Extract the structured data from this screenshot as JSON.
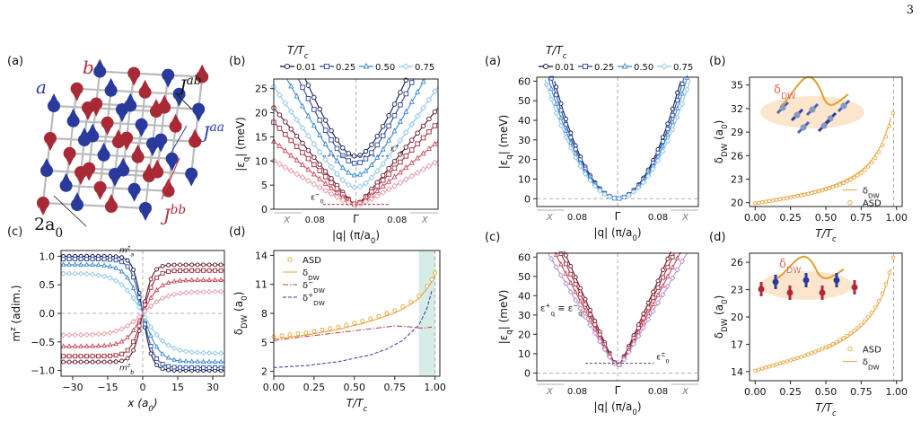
{
  "page": {
    "number": "3"
  },
  "labels": {
    "a": "(a)",
    "b": "(b)",
    "c": "(c)",
    "d": "(d)",
    "legend_title": "T/T",
    "legend_title_sub": "c",
    "q_axis": "|q| (π/a",
    "q_axis_sub": "0",
    "q_axis_close": ")",
    "eps_axis": "|ε",
    "eps_axis_sub": "q",
    "eps_axis_close": "| (meV)",
    "T_axis": "T/T",
    "T_axis_sub": "c",
    "delta_axis": "δ",
    "delta_axis_sub": "DW",
    "delta_axis_close": " (a",
    "delta_axis_close2": "0",
    "delta_axis_close3": ")",
    "x_axis": "x (a",
    "x_axis_sub": "0",
    "x_axis_close": ")",
    "m_axis": "m",
    "m_axis_sup": "z",
    "m_axis_close": " (adim.)",
    "lattice_a": "a",
    "lattice_b": "b",
    "J_ab": "J",
    "J_ab_sup": "ab",
    "J_aa": "J",
    "J_aa_sup": "aa",
    "J_bb": "J",
    "J_bb_sup": "bb",
    "two_a0": "2a",
    "two_a0_sub": "0",
    "m_a": "m",
    "m_a_sup": "z",
    "m_a_sub": "a",
    "m_b": "m",
    "m_b_sup": "z",
    "m_b_sub": "b",
    "eps_plus": "ε",
    "eps_plus_sup": "+",
    "eps_plus_sub": "0",
    "eps_minus": "ε",
    "eps_minus_sup": "−",
    "eps_minus_sub": "0",
    "eps_pm": "ε",
    "eps_pm_sup": "±",
    "eps_pm_sub": "0",
    "eps_equiv": "ε",
    "eps_equiv_sup1": "+",
    "eps_equiv_sub1": "q",
    "eps_equiv_mid": " ≡ ε",
    "eps_equiv_sup2": "−",
    "eps_equiv_sub2": "q",
    "delta_dw_inset": "δ",
    "delta_dw_inset_sub": "DW"
  },
  "legend": {
    "entries": [
      "0.01",
      "0.25",
      "0.50",
      "0.75"
    ]
  },
  "q_ticks": [
    "X",
    "0.08",
    "Γ",
    "0.08",
    "X"
  ],
  "colors": {
    "navy": "#101848",
    "blue": "#2c4a9c",
    "mid": "#3d8ad0",
    "light": "#8fc6ea",
    "dred": "#5c1428",
    "red": "#9c2a3c",
    "mred": "#c9485a",
    "pink": "#e89aa6",
    "orange": "#e8a33a",
    "purple": "#b28fd0"
  },
  "chart_data": [
    {
      "id": "L_b",
      "type": "line",
      "ylim": [
        0,
        27
      ],
      "yticks": [
        0,
        5,
        10,
        15,
        20,
        25
      ],
      "series": [
        {
          "name": "0.01",
          "gap": 11,
          "slope": 40,
          "branch": "upper"
        },
        {
          "name": "0.25",
          "gap": 9.5,
          "slope": 36,
          "branch": "upper"
        },
        {
          "name": "0.50",
          "gap": 7,
          "slope": 31,
          "branch": "upper"
        },
        {
          "name": "0.75",
          "gap": 4.5,
          "slope": 25,
          "branch": "upper"
        },
        {
          "name": "0.01",
          "gap": 1,
          "slope": 21,
          "branch": "lower"
        },
        {
          "name": "0.25",
          "gap": 1,
          "slope": 18,
          "branch": "lower"
        },
        {
          "name": "0.50",
          "gap": 1,
          "slope": 14,
          "branch": "lower"
        },
        {
          "name": "0.75",
          "gap": 1,
          "slope": 10,
          "branch": "lower"
        }
      ]
    },
    {
      "id": "L_c",
      "type": "line",
      "xlim": [
        -35,
        35
      ],
      "ylim": [
        -1.1,
        1.1
      ],
      "xticks": [
        -30,
        -15,
        0,
        15,
        30
      ],
      "yticks": [
        -1.0,
        -0.5,
        0.0,
        0.5,
        1.0
      ],
      "series": [
        {
          "name": "0.01",
          "amp": 1.0,
          "width": 4
        },
        {
          "name": "0.25",
          "amp": 0.95,
          "width": 5
        },
        {
          "name": "0.50",
          "amp": 0.85,
          "width": 7
        },
        {
          "name": "0.75",
          "amp": 0.7,
          "width": 10
        },
        {
          "name": "0.01",
          "amp": 0.85,
          "width": 4
        },
        {
          "name": "0.25",
          "amp": 0.75,
          "width": 5
        },
        {
          "name": "0.50",
          "amp": 0.58,
          "width": 7
        },
        {
          "name": "0.75",
          "amp": 0.38,
          "width": 10
        }
      ]
    },
    {
      "id": "L_d",
      "type": "line",
      "xlim": [
        0,
        1.03
      ],
      "ylim": [
        1.5,
        14.5
      ],
      "xticks": [
        0.0,
        0.25,
        0.5,
        0.75,
        1.0
      ],
      "yticks": [
        2,
        5,
        8,
        11,
        14
      ],
      "legend": [
        "ASD",
        "δDW",
        "δ−DW",
        "δ+DW"
      ],
      "series": [
        {
          "name": "ASD",
          "x": [
            0,
            0.05,
            0.1,
            0.15,
            0.2,
            0.25,
            0.3,
            0.35,
            0.4,
            0.45,
            0.5,
            0.55,
            0.6,
            0.65,
            0.7,
            0.75,
            0.8,
            0.85,
            0.9,
            0.95,
            0.98,
            1.0
          ],
          "y": [
            5.6,
            5.7,
            5.8,
            5.9,
            6.0,
            6.15,
            6.3,
            6.45,
            6.6,
            6.8,
            7.0,
            7.2,
            7.45,
            7.7,
            8.0,
            8.3,
            8.7,
            9.2,
            9.8,
            10.8,
            11.5,
            12.2
          ]
        },
        {
          "name": "δ−DW",
          "x": [
            0,
            0.2,
            0.4,
            0.6,
            0.75,
            0.85,
            0.9,
            0.95,
            0.98
          ],
          "y": [
            5.2,
            5.6,
            6.0,
            6.4,
            6.7,
            6.6,
            6.5,
            6.5,
            6.6
          ]
        },
        {
          "name": "δ+DW",
          "x": [
            0,
            0.2,
            0.4,
            0.6,
            0.7,
            0.8,
            0.9,
            0.95,
            0.98
          ],
          "y": [
            2.4,
            2.6,
            3.0,
            3.7,
            4.3,
            5.2,
            6.8,
            8.5,
            10.3
          ]
        }
      ]
    },
    {
      "id": "R_a",
      "type": "line",
      "ylim": [
        -4,
        62
      ],
      "yticks": [
        0,
        10,
        20,
        30,
        40,
        50,
        60
      ]
    },
    {
      "id": "R_b",
      "type": "line",
      "xlim": [
        -0.04,
        1.04
      ],
      "ylim": [
        19.5,
        36
      ],
      "xticks": [
        0.0,
        0.25,
        0.5,
        0.75,
        1.0
      ],
      "yticks": [
        20,
        23,
        26,
        29,
        32,
        35
      ],
      "legend": [
        "δDW",
        "ASD"
      ]
    },
    {
      "id": "R_c",
      "type": "line",
      "ylim": [
        -4,
        62
      ],
      "yticks": [
        0,
        10,
        20,
        30,
        40,
        50,
        60
      ]
    },
    {
      "id": "R_d",
      "type": "line",
      "xlim": [
        -0.04,
        1.04
      ],
      "ylim": [
        13,
        27
      ],
      "xticks": [
        0.0,
        0.25,
        0.5,
        0.75,
        1.0
      ],
      "yticks": [
        14,
        17,
        20,
        23,
        26
      ],
      "legend": [
        "ASD",
        "δDW"
      ]
    }
  ]
}
